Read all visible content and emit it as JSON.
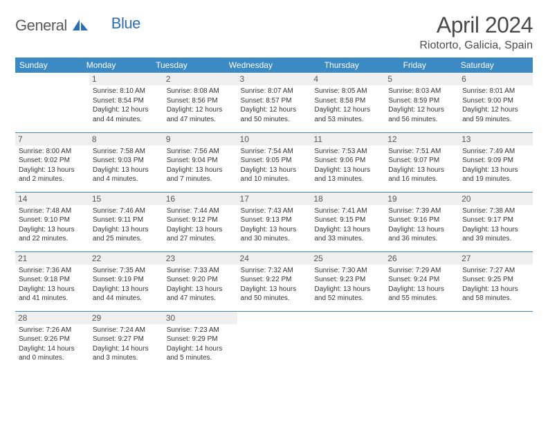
{
  "logo": {
    "text1": "General",
    "text2": "Blue"
  },
  "title": "April 2024",
  "location": "Riotorto, Galicia, Spain",
  "colors": {
    "header_bg": "#3b8ac4",
    "header_text": "#ffffff",
    "daynum_bg": "#efefef",
    "daynum_text": "#555555",
    "row_border": "#3b8ac4",
    "body_text": "#333333"
  },
  "dow": [
    "Sunday",
    "Monday",
    "Tuesday",
    "Wednesday",
    "Thursday",
    "Friday",
    "Saturday"
  ],
  "weeks": [
    [
      {
        "n": "",
        "sr": "",
        "ss": "",
        "dl": ""
      },
      {
        "n": "1",
        "sr": "8:10 AM",
        "ss": "8:54 PM",
        "dl": "12 hours and 44 minutes."
      },
      {
        "n": "2",
        "sr": "8:08 AM",
        "ss": "8:56 PM",
        "dl": "12 hours and 47 minutes."
      },
      {
        "n": "3",
        "sr": "8:07 AM",
        "ss": "8:57 PM",
        "dl": "12 hours and 50 minutes."
      },
      {
        "n": "4",
        "sr": "8:05 AM",
        "ss": "8:58 PM",
        "dl": "12 hours and 53 minutes."
      },
      {
        "n": "5",
        "sr": "8:03 AM",
        "ss": "8:59 PM",
        "dl": "12 hours and 56 minutes."
      },
      {
        "n": "6",
        "sr": "8:01 AM",
        "ss": "9:00 PM",
        "dl": "12 hours and 59 minutes."
      }
    ],
    [
      {
        "n": "7",
        "sr": "8:00 AM",
        "ss": "9:02 PM",
        "dl": "13 hours and 2 minutes."
      },
      {
        "n": "8",
        "sr": "7:58 AM",
        "ss": "9:03 PM",
        "dl": "13 hours and 4 minutes."
      },
      {
        "n": "9",
        "sr": "7:56 AM",
        "ss": "9:04 PM",
        "dl": "13 hours and 7 minutes."
      },
      {
        "n": "10",
        "sr": "7:54 AM",
        "ss": "9:05 PM",
        "dl": "13 hours and 10 minutes."
      },
      {
        "n": "11",
        "sr": "7:53 AM",
        "ss": "9:06 PM",
        "dl": "13 hours and 13 minutes."
      },
      {
        "n": "12",
        "sr": "7:51 AM",
        "ss": "9:07 PM",
        "dl": "13 hours and 16 minutes."
      },
      {
        "n": "13",
        "sr": "7:49 AM",
        "ss": "9:09 PM",
        "dl": "13 hours and 19 minutes."
      }
    ],
    [
      {
        "n": "14",
        "sr": "7:48 AM",
        "ss": "9:10 PM",
        "dl": "13 hours and 22 minutes."
      },
      {
        "n": "15",
        "sr": "7:46 AM",
        "ss": "9:11 PM",
        "dl": "13 hours and 25 minutes."
      },
      {
        "n": "16",
        "sr": "7:44 AM",
        "ss": "9:12 PM",
        "dl": "13 hours and 27 minutes."
      },
      {
        "n": "17",
        "sr": "7:43 AM",
        "ss": "9:13 PM",
        "dl": "13 hours and 30 minutes."
      },
      {
        "n": "18",
        "sr": "7:41 AM",
        "ss": "9:15 PM",
        "dl": "13 hours and 33 minutes."
      },
      {
        "n": "19",
        "sr": "7:39 AM",
        "ss": "9:16 PM",
        "dl": "13 hours and 36 minutes."
      },
      {
        "n": "20",
        "sr": "7:38 AM",
        "ss": "9:17 PM",
        "dl": "13 hours and 39 minutes."
      }
    ],
    [
      {
        "n": "21",
        "sr": "7:36 AM",
        "ss": "9:18 PM",
        "dl": "13 hours and 41 minutes."
      },
      {
        "n": "22",
        "sr": "7:35 AM",
        "ss": "9:19 PM",
        "dl": "13 hours and 44 minutes."
      },
      {
        "n": "23",
        "sr": "7:33 AM",
        "ss": "9:20 PM",
        "dl": "13 hours and 47 minutes."
      },
      {
        "n": "24",
        "sr": "7:32 AM",
        "ss": "9:22 PM",
        "dl": "13 hours and 50 minutes."
      },
      {
        "n": "25",
        "sr": "7:30 AM",
        "ss": "9:23 PM",
        "dl": "13 hours and 52 minutes."
      },
      {
        "n": "26",
        "sr": "7:29 AM",
        "ss": "9:24 PM",
        "dl": "13 hours and 55 minutes."
      },
      {
        "n": "27",
        "sr": "7:27 AM",
        "ss": "9:25 PM",
        "dl": "13 hours and 58 minutes."
      }
    ],
    [
      {
        "n": "28",
        "sr": "7:26 AM",
        "ss": "9:26 PM",
        "dl": "14 hours and 0 minutes."
      },
      {
        "n": "29",
        "sr": "7:24 AM",
        "ss": "9:27 PM",
        "dl": "14 hours and 3 minutes."
      },
      {
        "n": "30",
        "sr": "7:23 AM",
        "ss": "9:29 PM",
        "dl": "14 hours and 5 minutes."
      },
      {
        "n": "",
        "sr": "",
        "ss": "",
        "dl": ""
      },
      {
        "n": "",
        "sr": "",
        "ss": "",
        "dl": ""
      },
      {
        "n": "",
        "sr": "",
        "ss": "",
        "dl": ""
      },
      {
        "n": "",
        "sr": "",
        "ss": "",
        "dl": ""
      }
    ]
  ],
  "labels": {
    "sunrise": "Sunrise:",
    "sunset": "Sunset:",
    "daylight": "Daylight:"
  }
}
